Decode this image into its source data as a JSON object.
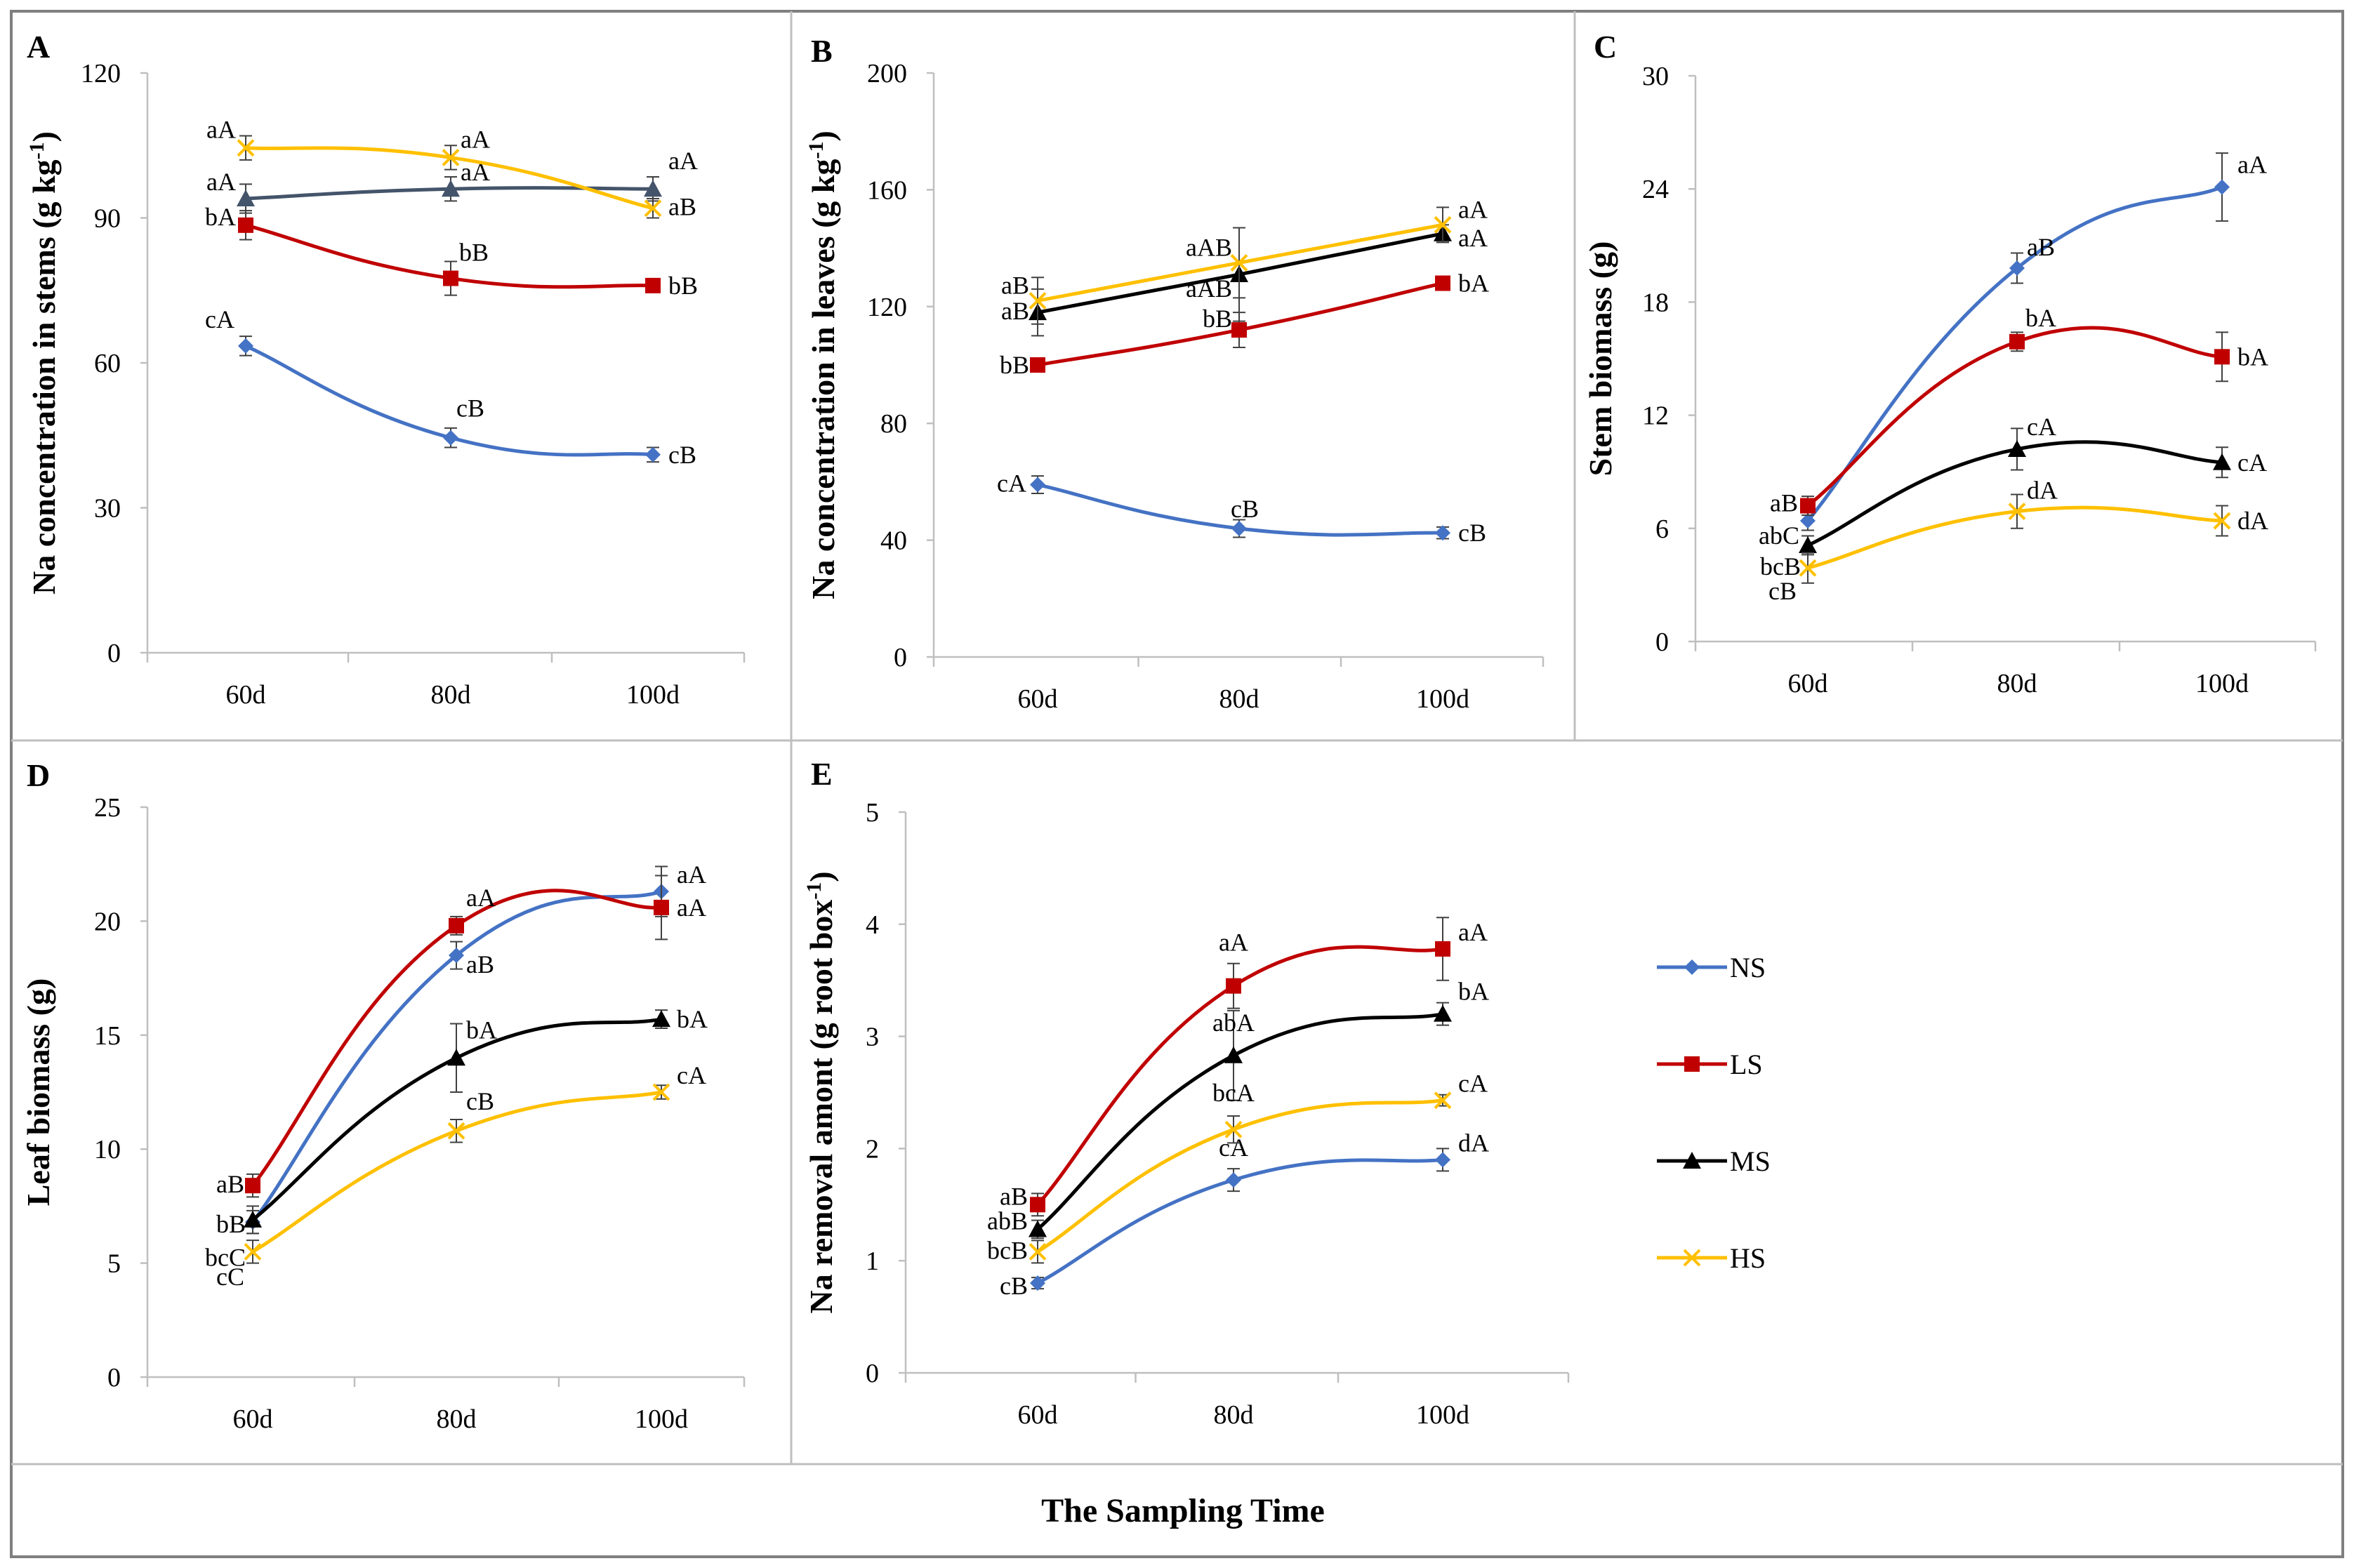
{
  "x_title": "The Sampling Time",
  "colors": {
    "NS": "#4472C4",
    "LS": "#C00000",
    "MS": "#000000",
    "HS": "#FFC000",
    "MS_panelA": "#44546A"
  },
  "legend": [
    {
      "key": "NS",
      "label": "NS",
      "marker": "diamond"
    },
    {
      "key": "LS",
      "label": "LS",
      "marker": "square"
    },
    {
      "key": "MS",
      "label": "MS",
      "marker": "triangle"
    },
    {
      "key": "HS",
      "label": "HS",
      "marker": "x"
    }
  ],
  "chart_data": [
    {
      "panel": "A",
      "type": "line",
      "ylabel": "Na concentration in stems (g kg-1)",
      "ylabel_main": "Na concentration in stems (g kg",
      "ylabel_sup": "-1",
      "ylabel_end": ")",
      "categories": [
        "60d",
        "80d",
        "100d"
      ],
      "ylim": [
        0,
        120
      ],
      "yticks": [
        0,
        30,
        60,
        90,
        120
      ],
      "series": [
        {
          "name": "NS",
          "values": [
            63.5,
            44.5,
            41
          ],
          "errors": [
            2,
            2,
            1.5
          ],
          "labels": [
            "cA",
            "cB",
            "cB"
          ]
        },
        {
          "name": "LS",
          "values": [
            88.5,
            77.5,
            76
          ],
          "errors": [
            3,
            3.5,
            1
          ],
          "labels": [
            "bA",
            "bB",
            "bB"
          ]
        },
        {
          "name": "MS",
          "values": [
            94,
            96,
            96
          ],
          "errors": [
            3,
            2.5,
            2.5
          ],
          "labels": [
            "aA",
            "aA",
            "aA"
          ]
        },
        {
          "name": "HS",
          "values": [
            104.5,
            102.5,
            92
          ],
          "errors": [
            2.5,
            2.5,
            2
          ],
          "labels": [
            "aA",
            "aA",
            "aB"
          ]
        }
      ]
    },
    {
      "panel": "B",
      "type": "line",
      "ylabel": "Na concentration in leaves (g kg-1)",
      "ylabel_main": "Na concentration in leaves (g kg",
      "ylabel_sup": "-1",
      "ylabel_end": ")",
      "categories": [
        "60d",
        "80d",
        "100d"
      ],
      "ylim": [
        0,
        200
      ],
      "yticks": [
        0,
        40,
        80,
        120,
        160,
        200
      ],
      "series": [
        {
          "name": "NS",
          "values": [
            59,
            44,
            42.5
          ],
          "errors": [
            3,
            3,
            2
          ],
          "labels": [
            "cA",
            "cB",
            "cB"
          ]
        },
        {
          "name": "LS",
          "values": [
            100,
            112,
            128
          ],
          "errors": [
            2,
            6,
            2
          ],
          "labels": [
            "bB",
            "bB",
            "bA"
          ]
        },
        {
          "name": "MS",
          "values": [
            118,
            131,
            145
          ],
          "errors": [
            8,
            16,
            3
          ],
          "labels": [
            "aB",
            "aAB",
            "aA"
          ]
        },
        {
          "name": "HS",
          "values": [
            122,
            135,
            148
          ],
          "errors": [
            8,
            12,
            6
          ],
          "labels": [
            "aB",
            "aAB",
            "aA"
          ]
        }
      ]
    },
    {
      "panel": "C",
      "type": "line",
      "ylabel": "Stem biomass (g)",
      "ylabel_main": "Stem biomass (g)",
      "ylabel_sup": "",
      "ylabel_end": "",
      "categories": [
        "60d",
        "80d",
        "100d"
      ],
      "ylim": [
        0,
        30
      ],
      "yticks": [
        0,
        6,
        12,
        18,
        24,
        30
      ],
      "series": [
        {
          "name": "NS",
          "values": [
            6.4,
            19.8,
            24.1
          ],
          "errors": [
            0.5,
            0.8,
            1.8
          ],
          "labels": [
            "cB",
            "aB",
            "aA"
          ]
        },
        {
          "name": "LS",
          "values": [
            7.2,
            15.9,
            15.1
          ],
          "errors": [
            0.5,
            0.5,
            1.3
          ],
          "labels": [
            "aB",
            "bA",
            "bA"
          ]
        },
        {
          "name": "MS",
          "values": [
            5.1,
            10.2,
            9.5
          ],
          "errors": [
            0.5,
            1.1,
            0.8
          ],
          "labels": [
            "abC",
            "cA",
            "cA"
          ]
        },
        {
          "name": "HS",
          "values": [
            3.9,
            6.9,
            6.4
          ],
          "errors": [
            0.8,
            0.9,
            0.8
          ],
          "labels": [
            "bcB",
            "dA",
            "dA"
          ]
        }
      ]
    },
    {
      "panel": "D",
      "type": "line",
      "ylabel": "Leaf biomass (g)",
      "ylabel_main": "Leaf biomass (g)",
      "ylabel_sup": "",
      "ylabel_end": "",
      "categories": [
        "60d",
        "80d",
        "100d"
      ],
      "ylim": [
        0,
        25
      ],
      "yticks": [
        0,
        5,
        10,
        15,
        20,
        25
      ],
      "series": [
        {
          "name": "NS",
          "values": [
            6.8,
            18.5,
            21.3
          ],
          "errors": [
            0.5,
            0.6,
            1.1
          ],
          "labels": [
            "cC",
            "aB",
            "aA"
          ]
        },
        {
          "name": "LS",
          "values": [
            8.4,
            19.8,
            20.6
          ],
          "errors": [
            0.5,
            0.4,
            1.4
          ],
          "labels": [
            "aB",
            "aA",
            "aA"
          ]
        },
        {
          "name": "MS",
          "values": [
            6.9,
            14.0,
            15.7
          ],
          "errors": [
            0.6,
            1.5,
            0.4
          ],
          "labels": [
            "bB",
            "bA",
            "bA"
          ]
        },
        {
          "name": "HS",
          "values": [
            5.5,
            10.8,
            12.5
          ],
          "errors": [
            0.5,
            0.5,
            0.3
          ],
          "labels": [
            "bcC",
            "cB",
            "cA"
          ]
        }
      ]
    },
    {
      "panel": "E",
      "type": "line",
      "ylabel": "Na removal amont (g root box-1)",
      "ylabel_main": "Na removal amont (g  root box",
      "ylabel_sup": "-1",
      "ylabel_end": ")",
      "categories": [
        "60d",
        "80d",
        "100d"
      ],
      "ylim": [
        0,
        5
      ],
      "yticks": [
        0,
        1,
        2,
        3,
        4,
        5
      ],
      "series": [
        {
          "name": "NS",
          "values": [
            0.8,
            1.72,
            1.9
          ],
          "errors": [
            0.05,
            0.1,
            0.1
          ],
          "labels": [
            "cB",
            "cA",
            "dA"
          ]
        },
        {
          "name": "LS",
          "values": [
            1.5,
            3.45,
            3.78
          ],
          "errors": [
            0.1,
            0.2,
            0.28
          ],
          "labels": [
            "aB",
            "aA",
            "aA"
          ]
        },
        {
          "name": "MS",
          "values": [
            1.28,
            2.83,
            3.2
          ],
          "errors": [
            0.08,
            0.4,
            0.1
          ],
          "labels": [
            "abB",
            "abA",
            "bA"
          ]
        },
        {
          "name": "HS",
          "values": [
            1.08,
            2.17,
            2.43
          ],
          "errors": [
            0.1,
            0.12,
            0.05
          ],
          "labels": [
            "bcB",
            "bcA",
            "cA"
          ]
        }
      ]
    }
  ]
}
